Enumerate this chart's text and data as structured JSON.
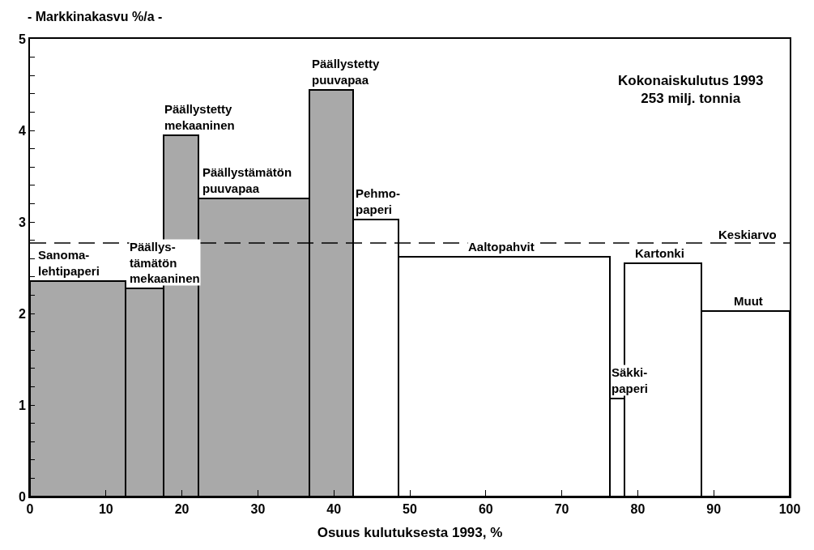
{
  "chart_data": {
    "type": "histogram",
    "ylabel": "- Markkinakasvu %/a -",
    "xlabel": "Osuus kulutuksesta 1993, %",
    "bins": [
      0,
      12.55,
      17.55,
      22.2,
      36.8,
      42.55,
      48.5,
      76.3,
      78.2,
      88.4,
      100
    ],
    "values": [
      2.35,
      2.27,
      3.95,
      3.26,
      4.44,
      3.03,
      2.62,
      1.07,
      2.55,
      2.03
    ],
    "colors": [
      "#a9a9a9",
      "#a9a9a9",
      "#a9a9a9",
      "#a9a9a9",
      "#a9a9a9",
      "#ffffff",
      "#ffffff",
      "#ffffff",
      "#ffffff",
      "#ffffff"
    ],
    "xlim": [
      0,
      100
    ],
    "xticks": [
      0,
      10,
      20,
      30,
      40,
      50,
      60,
      70,
      80,
      90,
      100
    ],
    "ylim": [
      0,
      5
    ],
    "yticks": [
      0,
      {
        "value": 0.2,
        "label": null
      },
      {
        "value": 0.4,
        "label": null
      },
      {
        "value": 0.6,
        "label": null
      },
      {
        "value": 0.8,
        "label": null
      },
      1,
      {
        "value": 1.2,
        "label": null
      },
      {
        "value": 1.4,
        "label": null
      },
      {
        "value": 1.6,
        "label": null
      },
      {
        "value": 1.8,
        "label": null
      },
      2,
      {
        "value": 2.2,
        "label": null
      },
      {
        "value": 2.4,
        "label": null
      },
      {
        "value": 2.6,
        "label": null
      },
      {
        "value": 2.8,
        "label": null
      },
      3,
      {
        "value": 3.2,
        "label": null
      },
      {
        "value": 3.4,
        "label": null
      },
      {
        "value": 3.6,
        "label": null
      },
      {
        "value": 3.8,
        "label": null
      },
      4,
      {
        "value": 4.2,
        "label": null
      },
      {
        "value": 4.4,
        "label": null
      },
      {
        "value": 4.6,
        "label": null
      },
      {
        "value": 4.8,
        "label": null
      },
      5
    ],
    "ref_lines": [
      {
        "axis": "y",
        "value": 2.77,
        "label": "Keskiarvo",
        "line_style": "dashed",
        "color": "#000000"
      }
    ],
    "annotations": [
      {
        "text": "Sanoma-\nlehtipaperi",
        "x": 1,
        "y": 2.35
      },
      {
        "text": "Päällys-\ntämätön\nmekaaninen",
        "x": 13,
        "y": 2.27
      },
      {
        "text": "Päällystetty\nmekaaninen",
        "x": 17.6,
        "y": 3.95
      },
      {
        "text": "Päällystämätön\npuuvapaa",
        "x": 22.6,
        "y": 3.26
      },
      {
        "text": "Päällystetty\npuuvapaa",
        "x": 37,
        "y": 4.44
      },
      {
        "text": "Pehmo-\npaperi",
        "x": 42.7,
        "y": 3.03
      },
      {
        "text": "Aaltopahvit",
        "x": 57.6,
        "y": 2.62
      },
      {
        "text": "Säkki-\npaperi",
        "x": 76.4,
        "y": 1.07
      },
      {
        "text": "Kartonki",
        "x": 79.5,
        "y": 2.55
      },
      {
        "text": "Muut",
        "x": 92.5,
        "y": 2.03
      },
      "Kokonaiskulutus 1993\n253 milj. tonnia"
    ]
  }
}
